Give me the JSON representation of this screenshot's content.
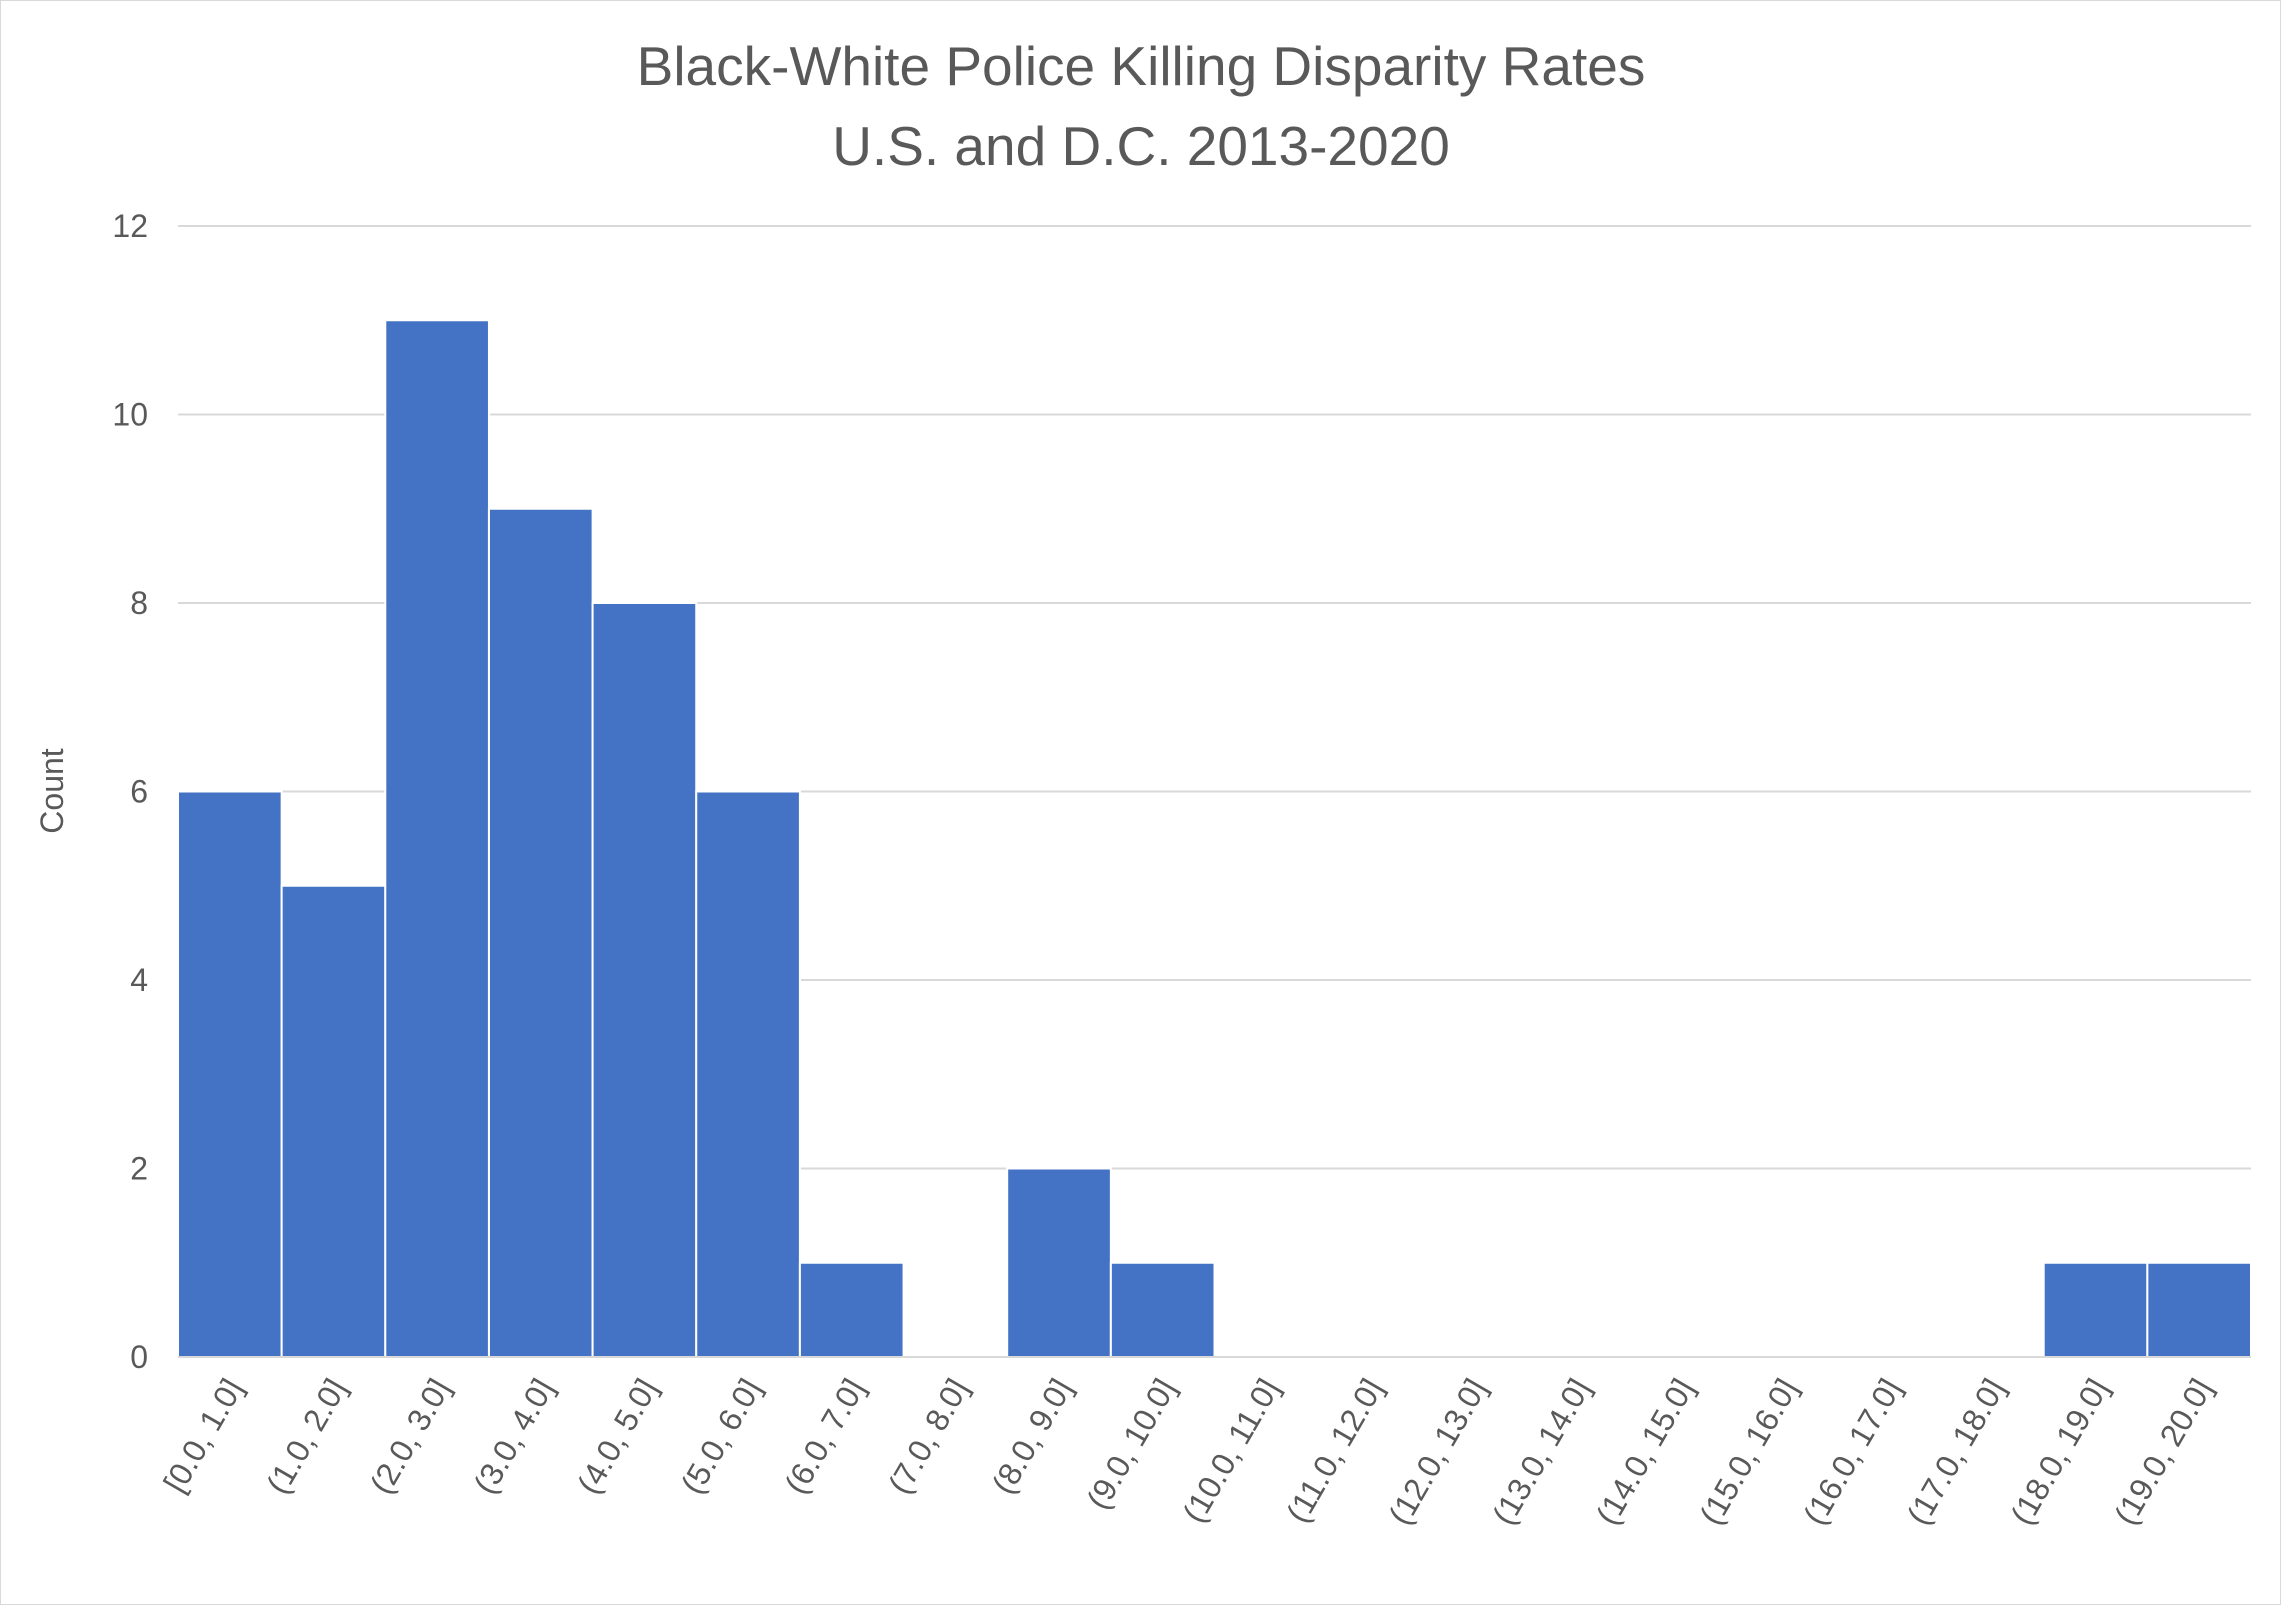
{
  "chart_data": {
    "type": "bar",
    "subtype": "histogram",
    "title": [
      "Black-White Police Killing Disparity Rates",
      "U.S. and D.C. 2013-2020"
    ],
    "xlabel": "",
    "ylabel": "Count",
    "ylim": [
      0,
      12
    ],
    "yticks": [
      0,
      2,
      4,
      6,
      8,
      10,
      12
    ],
    "grid": true,
    "legend": "none",
    "bar_color": "#4472c4",
    "categories": [
      "[0.0, 1.0]",
      "(1.0, 2.0]",
      "(2.0, 3.0]",
      "(3.0, 4.0]",
      "(4.0, 5.0]",
      "(5.0, 6.0]",
      "(6.0, 7.0]",
      "(7.0, 8.0]",
      "(8.0, 9.0]",
      "(9.0, 10.0]",
      "(10.0, 11.0]",
      "(11.0, 12.0]",
      "(12.0, 13.0]",
      "(13.0, 14.0]",
      "(14.0, 15.0]",
      "(15.0, 16.0]",
      "(16.0, 17.0]",
      "(17.0, 18.0]",
      "(18.0, 19.0]",
      "(19.0, 20.0]"
    ],
    "values": [
      6,
      5,
      11,
      9,
      8,
      6,
      1,
      0,
      2,
      1,
      0,
      0,
      0,
      0,
      0,
      0,
      0,
      0,
      1,
      1
    ]
  }
}
